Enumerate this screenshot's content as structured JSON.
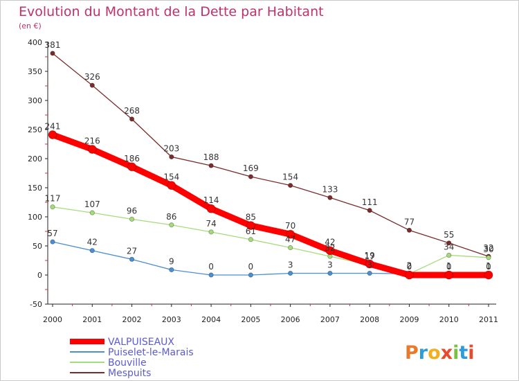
{
  "chart_data": {
    "type": "line",
    "title": "Evolution du Montant de la Dette par Habitant",
    "subtitle": "(en €)",
    "xlabel": "",
    "ylabel": "",
    "ylim": [
      -50,
      400
    ],
    "y_ticks": [
      "-50",
      "0",
      "50",
      "100",
      "150",
      "200",
      "250",
      "300",
      "350",
      "400"
    ],
    "categories": [
      "2000",
      "2001",
      "2002",
      "2003",
      "2004",
      "2005",
      "2006",
      "2007",
      "2008",
      "2009",
      "2010",
      "2011"
    ],
    "grid": false,
    "legend_position": "bottom-left",
    "series": [
      {
        "name": "Mespuits",
        "color": "#7b2b2b",
        "values": [
          381,
          326,
          268,
          203,
          188,
          169,
          154,
          133,
          111,
          77,
          55,
          32
        ]
      },
      {
        "name": "Bouville",
        "color": "#a5dc7a",
        "values": [
          117,
          107,
          96,
          86,
          74,
          61,
          47,
          32,
          17,
          2,
          34,
          30
        ]
      },
      {
        "name": "Puiselet-le-Marais",
        "color": "#4a8fcf",
        "values": [
          57,
          42,
          27,
          9,
          0,
          0,
          3,
          3,
          3,
          2,
          1,
          1
        ]
      },
      {
        "name": "VALPUISEAUX",
        "color": "#ff0000",
        "values": [
          241,
          216,
          186,
          154,
          114,
          85,
          70,
          42,
          19,
          0,
          0,
          0
        ]
      }
    ],
    "labels": [
      [
        "381",
        "326",
        "268",
        "203",
        "188",
        "169",
        "154",
        "133",
        "111",
        "77",
        "55",
        "32"
      ],
      [
        "117",
        "107",
        "96",
        "86",
        "74",
        "61",
        "47",
        "32",
        "17",
        "2",
        "34",
        "30"
      ],
      [
        "57",
        "42",
        "27",
        "9",
        "0",
        "0",
        "3",
        "3",
        "3",
        "2",
        "1",
        "1"
      ],
      [
        "241",
        "216",
        "186",
        "154",
        "114",
        "85",
        "70",
        "42",
        "19",
        "0",
        "0",
        "0"
      ]
    ],
    "legend_order": [
      "VALPUISEAUX",
      "Puiselet-le-Marais",
      "Bouville",
      "Mespuits"
    ]
  },
  "logo": {
    "letters": [
      "P",
      "r",
      "o",
      "x",
      "i",
      "t",
      "i"
    ],
    "colors": [
      "#e87a2c",
      "#2f9bd9",
      "#f0b020",
      "#e84b2c",
      "#7ac043",
      "#2f9bd9",
      "#e84b2c"
    ]
  }
}
